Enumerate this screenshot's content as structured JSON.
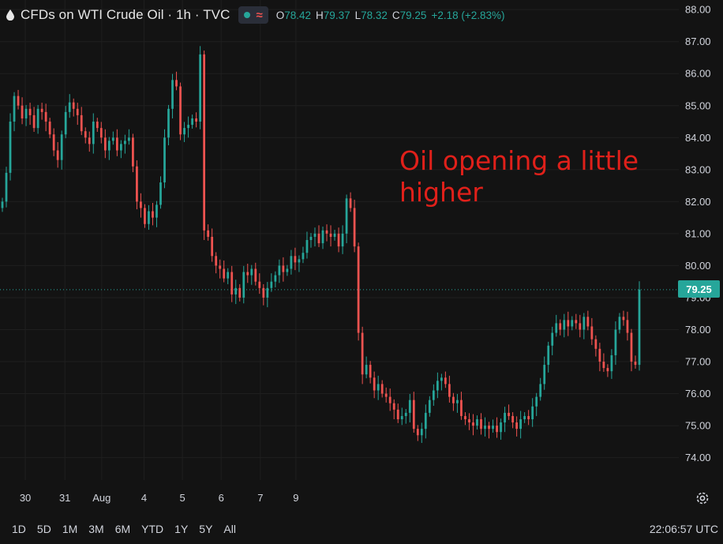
{
  "header": {
    "symbol_title": "CFDs on WTI Crude Oil · 1h · TVC",
    "ohlc": [
      {
        "key": "O",
        "value": "78.42"
      },
      {
        "key": "H",
        "value": "79.37"
      },
      {
        "key": "L",
        "value": "78.32"
      },
      {
        "key": "C",
        "value": "79.25"
      }
    ],
    "change": "+2.18 (+2.83%)"
  },
  "annotation": "Oil opening a little higher",
  "last_price_label": "79.25",
  "timeframes": [
    "1D",
    "5D",
    "1M",
    "3M",
    "6M",
    "YTD",
    "1Y",
    "5Y",
    "All"
  ],
  "clock": "22:06:57 UTC",
  "colors": {
    "up": "#26a69a",
    "down": "#ef5350",
    "background": "#131313",
    "annotation": "#e0201a"
  },
  "icons": [
    "oil-drop-icon",
    "status-dot-icon",
    "wave-icon",
    "settings-gear-icon"
  ],
  "chart_data": {
    "type": "candlestick",
    "ylim": [
      73.3,
      88.3
    ],
    "y_ticks": [
      "74.00",
      "75.00",
      "76.00",
      "77.00",
      "78.00",
      "79.00",
      "80.00",
      "81.00",
      "82.00",
      "83.00",
      "84.00",
      "85.00",
      "86.00",
      "87.00",
      "88.00"
    ],
    "x_ticks": [
      {
        "label": "30",
        "t": 5.8
      },
      {
        "label": "31",
        "t": 15.8
      },
      {
        "label": "Aug",
        "t": 25.1
      },
      {
        "label": "4",
        "t": 35.8
      },
      {
        "label": "5",
        "t": 45.5
      },
      {
        "label": "6",
        "t": 55.3
      },
      {
        "label": "7",
        "t": 65.2
      },
      {
        "label": "9",
        "t": 74.2
      }
    ],
    "closes": [
      82.0,
      82.9,
      84.5,
      85.3,
      85.0,
      84.6,
      84.9,
      84.7,
      84.3,
      84.9,
      84.8,
      84.5,
      84.1,
      83.6,
      83.3,
      84.1,
      84.8,
      85.1,
      84.9,
      84.7,
      84.2,
      84.0,
      83.8,
      84.5,
      84.3,
      84.0,
      83.6,
      83.9,
      84.0,
      83.6,
      83.8,
      83.9,
      84.0,
      83.1,
      82.0,
      81.8,
      81.3,
      81.7,
      81.5,
      81.9,
      82.6,
      84.0,
      84.9,
      85.8,
      85.6,
      84.1,
      84.3,
      84.4,
      84.6,
      84.5,
      86.6,
      81.1,
      80.9,
      80.3,
      80.0,
      79.9,
      79.6,
      79.8,
      79.1,
      79.3,
      79.0,
      79.8,
      79.7,
      79.9,
      79.5,
      79.3,
      79.0,
      79.3,
      79.5,
      79.7,
      80.0,
      79.8,
      79.9,
      80.3,
      80.1,
      80.2,
      80.4,
      80.8,
      80.9,
      81.0,
      80.7,
      81.1,
      81.0,
      80.9,
      81.0,
      80.6,
      81.0,
      82.1,
      81.8,
      80.6,
      77.9,
      76.6,
      76.9,
      76.5,
      76.1,
      76.3,
      76.0,
      75.9,
      75.7,
      75.5,
      75.2,
      75.3,
      75.4,
      75.8,
      74.9,
      74.7,
      74.9,
      75.4,
      75.8,
      76.1,
      76.4,
      76.5,
      76.3,
      75.9,
      75.7,
      75.8,
      75.3,
      75.2,
      75.1,
      75.0,
      75.2,
      74.9,
      75.0,
      74.9,
      75.0,
      74.8,
      75.1,
      75.4,
      75.3,
      75.1,
      74.9,
      75.2,
      75.3,
      75.2,
      75.6,
      75.9,
      76.3,
      76.9,
      77.5,
      77.9,
      78.2,
      78.0,
      78.3,
      78.1,
      78.3,
      78.2,
      78.0,
      78.4,
      78.1,
      77.7,
      77.4,
      77.0,
      76.8,
      76.7,
      77.2,
      78.0,
      78.4,
      78.3,
      77.9,
      77.0,
      76.9,
      79.25
    ]
  }
}
